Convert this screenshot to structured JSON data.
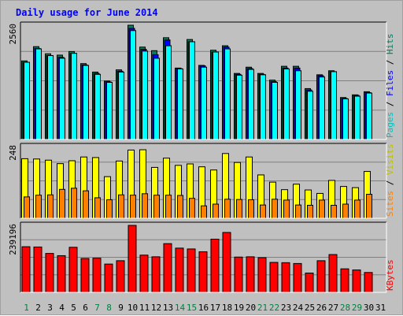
{
  "chart_data": [
    {
      "type": "bar",
      "title": "Daily usage for June 2014",
      "y_max_label": "2560",
      "axis_label_parts": [
        "Pages",
        " / ",
        "Files",
        " / ",
        "Hits"
      ],
      "categories": [
        "1",
        "2",
        "3",
        "4",
        "5",
        "6",
        "7",
        "8",
        "9",
        "10",
        "11",
        "12",
        "13",
        "14",
        "15",
        "16",
        "17",
        "18",
        "19",
        "20",
        "21",
        "22",
        "23",
        "24",
        "25",
        "26",
        "27",
        "28",
        "29",
        "30",
        "31"
      ],
      "weekend_days": [
        "1",
        "7",
        "8",
        "14",
        "15",
        "21",
        "22",
        "28",
        "29"
      ],
      "ylim": [
        0,
        2560
      ],
      "series": [
        {
          "name": "Hits",
          "color": "#00805c",
          "values": [
            1760,
            2080,
            1920,
            1890,
            1970,
            1700,
            1510,
            1310,
            1560,
            2560,
            2070,
            1990,
            2280,
            1600,
            2240,
            1660,
            2000,
            2100,
            1480,
            1620,
            1480,
            1330,
            1640,
            1640,
            1140,
            1450,
            1540,
            940,
            1000,
            1070,
            null
          ]
        },
        {
          "name": "Files",
          "color": "#0000ff",
          "values": [
            1730,
            2040,
            1880,
            1840,
            1930,
            1670,
            1480,
            1290,
            1530,
            2490,
            2020,
            1900,
            2230,
            1590,
            2190,
            1650,
            1960,
            2070,
            1460,
            1590,
            1460,
            1300,
            1600,
            1600,
            1110,
            1430,
            1520,
            920,
            990,
            1050,
            null
          ]
        },
        {
          "name": "Pages",
          "color": "#00ffff",
          "values": [
            1730,
            2030,
            1880,
            1820,
            1930,
            1660,
            1460,
            1280,
            1510,
            2440,
            1980,
            1820,
            2100,
            1580,
            2190,
            1620,
            1960,
            2030,
            1440,
            1570,
            1450,
            1280,
            1580,
            1540,
            1080,
            1400,
            1520,
            910,
            970,
            1040,
            null
          ]
        }
      ]
    },
    {
      "type": "bar",
      "y_max_label": "248",
      "axis_label_parts": [
        "Sites",
        " / ",
        "Visits"
      ],
      "categories": [
        "1",
        "2",
        "3",
        "4",
        "5",
        "6",
        "7",
        "8",
        "9",
        "10",
        "11",
        "12",
        "13",
        "14",
        "15",
        "16",
        "17",
        "18",
        "19",
        "20",
        "21",
        "22",
        "23",
        "24",
        "25",
        "26",
        "27",
        "28",
        "29",
        "30",
        "31"
      ],
      "ylim": [
        0,
        248
      ],
      "series": [
        {
          "name": "Visits",
          "color": "#ffff00",
          "values": [
            206,
            205,
            201,
            189,
            199,
            212,
            210,
            144,
            198,
            236,
            237,
            176,
            208,
            183,
            188,
            178,
            167,
            224,
            193,
            212,
            150,
            125,
            99,
            118,
            98,
            86,
            131,
            110,
            106,
            162,
            null
          ]
        },
        {
          "name": "Sites",
          "color": "#ff8000",
          "values": [
            74,
            80,
            81,
            100,
            104,
            95,
            71,
            64,
            81,
            80,
            85,
            80,
            80,
            79,
            69,
            43,
            49,
            66,
            65,
            64,
            46,
            66,
            63,
            46,
            45,
            63,
            45,
            49,
            63,
            83,
            null
          ]
        }
      ]
    },
    {
      "type": "bar",
      "y_max_label": "239196",
      "axis_label_parts": [
        "KBytes"
      ],
      "categories": [
        "1",
        "2",
        "3",
        "4",
        "5",
        "6",
        "7",
        "8",
        "9",
        "10",
        "11",
        "12",
        "13",
        "14",
        "15",
        "16",
        "17",
        "18",
        "19",
        "20",
        "21",
        "22",
        "23",
        "24",
        "25",
        "26",
        "27",
        "28",
        "29",
        "30",
        "31"
      ],
      "ylim": [
        0,
        239196
      ],
      "series": [
        {
          "name": "KBytes",
          "color": "#ff0000",
          "values": [
            163000,
            162000,
            139000,
            131000,
            161000,
            121000,
            122000,
            101000,
            113000,
            239196,
            133000,
            127000,
            174000,
            158000,
            155000,
            145000,
            190000,
            214000,
            126000,
            127000,
            124000,
            107000,
            106000,
            103000,
            69000,
            113000,
            135000,
            84000,
            80000,
            71000,
            null
          ]
        }
      ]
    }
  ]
}
